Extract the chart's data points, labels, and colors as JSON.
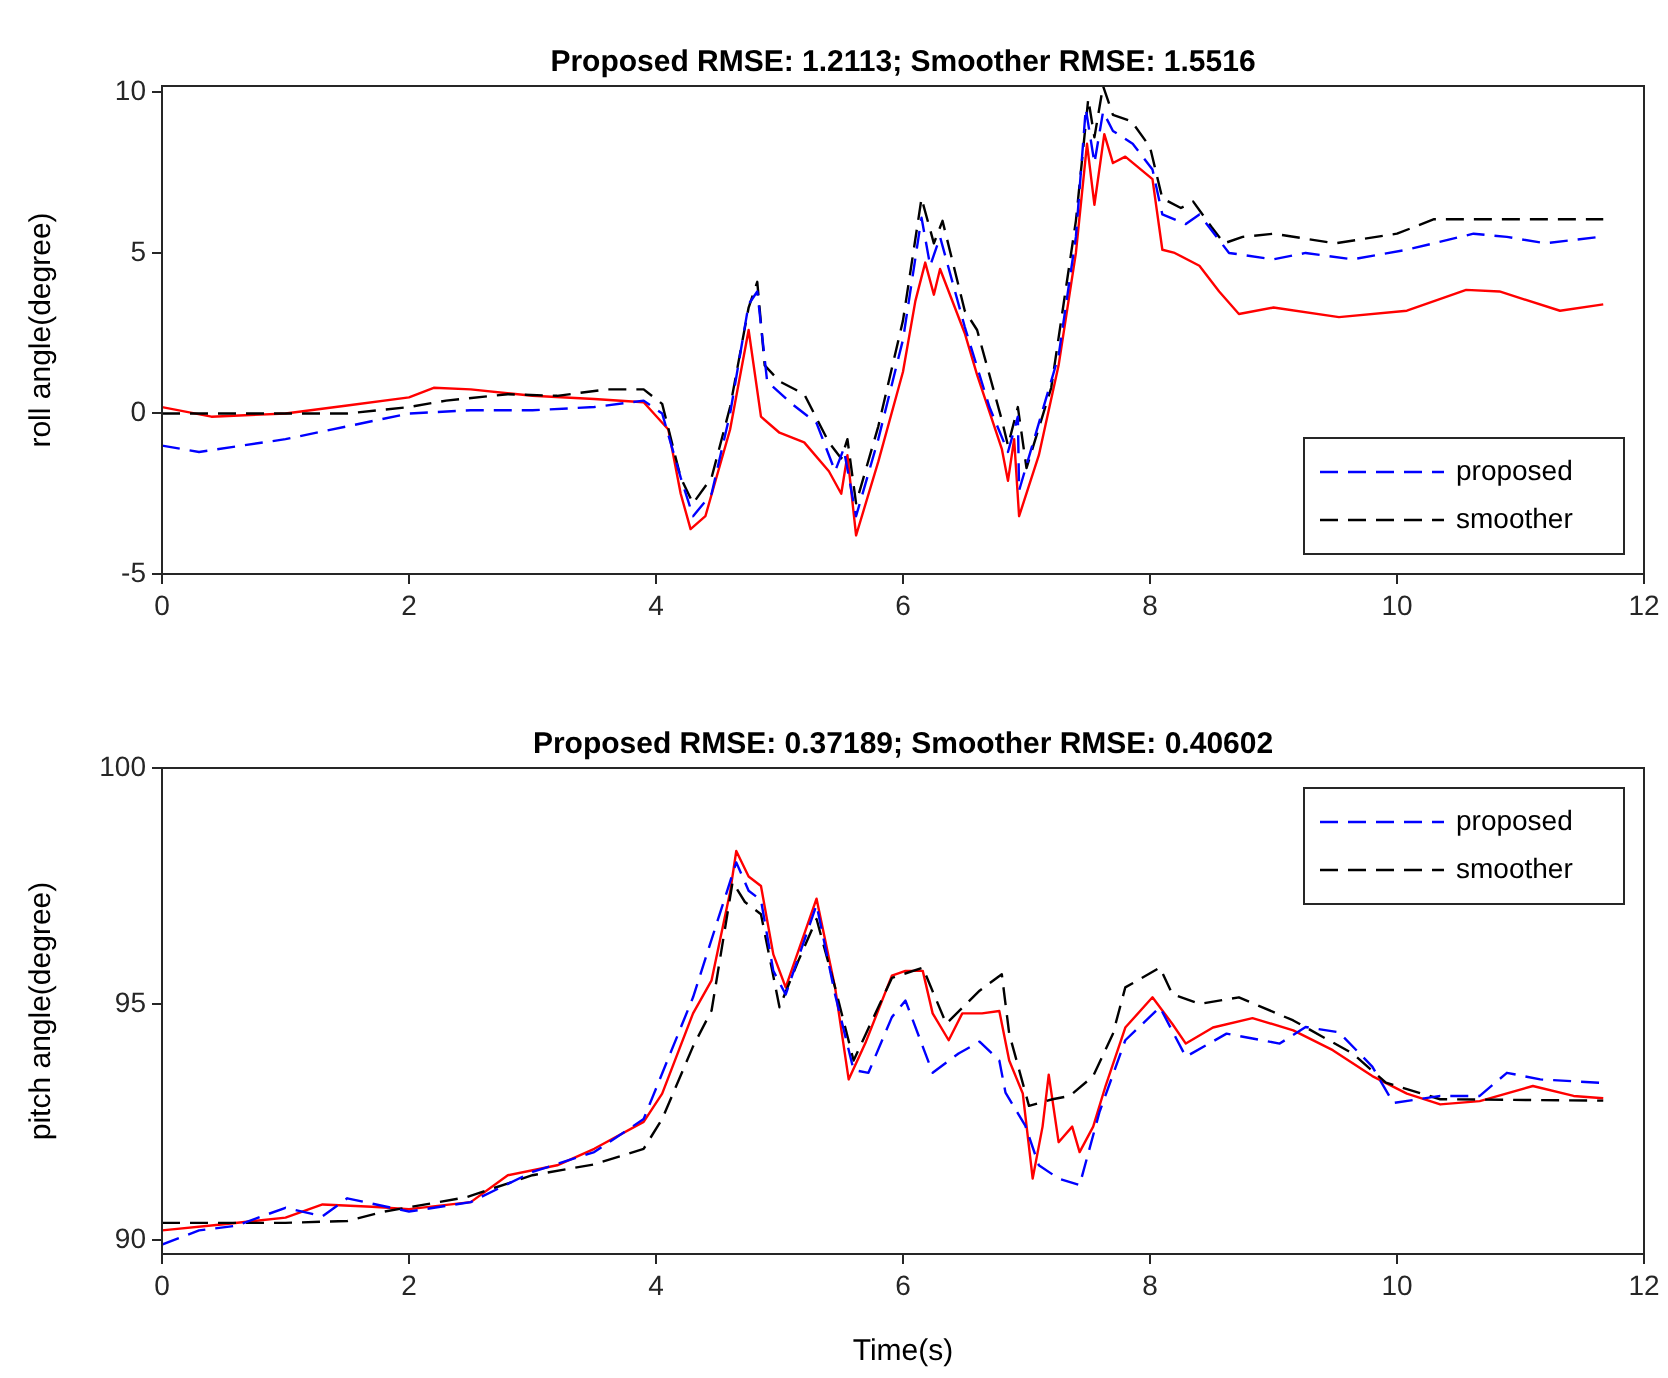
{
  "chart_data": [
    {
      "type": "line",
      "title": "Proposed RMSE: 1.2113; Smoother RMSE: 1.5516",
      "ylabel": "roll angle(degree)",
      "xlim": [
        0,
        12
      ],
      "xticks": [
        0,
        2,
        4,
        6,
        8,
        10,
        12
      ],
      "ylim": [
        -5,
        10.2
      ],
      "yticks": [
        -5,
        0,
        5,
        10
      ],
      "grid": false,
      "legend": "bottom right",
      "marker": "none",
      "series": [
        {
          "name": "proposed",
          "color": "#0000ff",
          "line_style": "dashed",
          "x": [
            0,
            0.3,
            1,
            1.5,
            2,
            2.5,
            3,
            3.5,
            3.9,
            4.05,
            4.2,
            4.3,
            4.45,
            4.6,
            4.75,
            4.82,
            4.9,
            5.1,
            5.3,
            5.45,
            5.52,
            5.62,
            5.8,
            6.0,
            6.15,
            6.22,
            6.3,
            6.5,
            6.7,
            6.85,
            6.93,
            6.94,
            7.26,
            7.4,
            7.48,
            7.55,
            7.62,
            7.7,
            7.86,
            8.02,
            8.1,
            8.29,
            8.4,
            8.64,
            9.0,
            9.26,
            9.64,
            10.08,
            10.62,
            10.89,
            11.2,
            11.64
          ],
          "values": [
            -1.0,
            -1.2,
            -0.8,
            -0.4,
            0.0,
            0.1,
            0.1,
            0.2,
            0.4,
            0.0,
            -2.0,
            -3.2,
            -2.5,
            0.0,
            3.4,
            3.8,
            1.0,
            0.3,
            -0.3,
            -1.8,
            -1.1,
            -3.2,
            -0.8,
            2.3,
            6.1,
            4.6,
            5.5,
            2.7,
            0.2,
            -1.2,
            -0.1,
            -2.4,
            1.8,
            5.5,
            9.5,
            7.8,
            9.4,
            8.8,
            8.4,
            7.6,
            6.2,
            5.9,
            6.2,
            5.0,
            4.8,
            5.0,
            4.8,
            5.1,
            5.6,
            5.5,
            5.3,
            5.5
          ]
        },
        {
          "name": "smoother",
          "color": "#000000",
          "line_style": "dashed",
          "x": [
            0,
            1,
            1.5,
            2,
            2.3,
            2.8,
            3.2,
            3.6,
            3.9,
            4.05,
            4.2,
            4.3,
            4.45,
            4.6,
            4.75,
            4.82,
            4.88,
            5.0,
            5.2,
            5.4,
            5.5,
            5.55,
            5.62,
            5.8,
            6.0,
            6.15,
            6.25,
            6.32,
            6.5,
            6.6,
            6.8,
            6.85,
            6.93,
            7.0,
            7.2,
            7.4,
            7.5,
            7.55,
            7.62,
            7.7,
            7.85,
            8.0,
            8.1,
            8.25,
            8.35,
            8.5,
            8.6,
            8.75,
            9.0,
            9.5,
            10.0,
            10.3,
            11.67
          ],
          "values": [
            0.0,
            0.0,
            0.0,
            0.2,
            0.4,
            0.6,
            0.55,
            0.75,
            0.75,
            0.3,
            -2.0,
            -2.8,
            -2.0,
            0.2,
            3.3,
            4.1,
            1.5,
            1.0,
            0.6,
            -0.9,
            -1.4,
            -0.8,
            -2.8,
            -0.4,
            2.9,
            6.7,
            5.3,
            6.0,
            3.2,
            2.6,
            -0.2,
            -1.0,
            0.2,
            -1.7,
            0.8,
            6.0,
            9.8,
            8.6,
            10.2,
            9.3,
            9.1,
            8.3,
            6.7,
            6.4,
            6.6,
            5.8,
            5.3,
            5.5,
            5.6,
            5.3,
            5.6,
            6.05,
            6.05
          ]
        },
        {
          "color": "#ff0000",
          "line_style": "solid",
          "x": [
            0,
            0.4,
            1,
            1.5,
            2,
            2.2,
            2.5,
            3,
            3.5,
            3.9,
            4.1,
            4.2,
            4.28,
            4.4,
            4.6,
            4.75,
            4.85,
            5.0,
            5.2,
            5.4,
            5.5,
            5.55,
            5.62,
            5.8,
            6.0,
            6.1,
            6.18,
            6.25,
            6.3,
            6.5,
            6.6,
            6.8,
            6.85,
            6.9,
            6.94,
            7.1,
            7.26,
            7.4,
            7.49,
            7.55,
            7.63,
            7.7,
            7.8,
            8.02,
            8.1,
            8.2,
            8.4,
            8.56,
            8.72,
            9.0,
            9.53,
            10.08,
            10.56,
            10.83,
            11.32,
            11.67
          ],
          "values": [
            0.2,
            -0.1,
            0.0,
            0.25,
            0.5,
            0.8,
            0.75,
            0.55,
            0.45,
            0.35,
            -0.5,
            -2.5,
            -3.6,
            -3.2,
            -0.5,
            2.6,
            -0.1,
            -0.6,
            -0.9,
            -1.8,
            -2.5,
            -1.3,
            -3.8,
            -1.5,
            1.3,
            3.5,
            4.7,
            3.7,
            4.5,
            2.5,
            1.2,
            -1.1,
            -2.1,
            -0.8,
            -3.2,
            -1.3,
            1.5,
            5.0,
            8.4,
            6.5,
            8.7,
            7.8,
            8.0,
            7.3,
            5.1,
            5.0,
            4.6,
            3.8,
            3.1,
            3.3,
            3.0,
            3.2,
            3.85,
            3.8,
            3.2,
            3.4
          ]
        }
      ]
    },
    {
      "type": "line",
      "title": "Proposed RMSE: 0.37189; Smoother RMSE: 0.40602",
      "xlabel": "Time(s)",
      "ylabel": "pitch angle(degree)",
      "xlim": [
        0,
        12
      ],
      "xticks": [
        0,
        2,
        4,
        6,
        8,
        10,
        12
      ],
      "ylim": [
        89.7,
        100
      ],
      "yticks": [
        90,
        95,
        100
      ],
      "grid": false,
      "legend": "top right",
      "marker": "none",
      "series": [
        {
          "name": "proposed",
          "color": "#0000ff",
          "line_style": "dashed",
          "x": [
            0,
            0.3,
            0.6,
            1.0,
            1.3,
            1.5,
            2.0,
            2.5,
            3.0,
            3.5,
            3.9,
            4.3,
            4.65,
            4.75,
            4.85,
            4.95,
            5.05,
            5.3,
            5.45,
            5.6,
            5.72,
            5.91,
            6.02,
            6.24,
            6.45,
            6.62,
            6.78,
            6.83,
            6.99,
            7.1,
            7.26,
            7.43,
            7.59,
            7.8,
            8.08,
            8.29,
            8.62,
            9.05,
            9.26,
            9.53,
            9.8,
            9.97,
            10.35,
            10.67,
            10.89,
            11.16,
            11.64
          ],
          "values": [
            89.9,
            90.2,
            90.3,
            90.68,
            90.5,
            90.88,
            90.6,
            90.8,
            91.44,
            91.86,
            92.56,
            95.14,
            98.0,
            97.4,
            97.2,
            95.7,
            95.2,
            97.1,
            95.2,
            93.6,
            93.54,
            94.72,
            95.07,
            93.54,
            93.95,
            94.2,
            93.8,
            93.12,
            92.42,
            91.58,
            91.3,
            91.16,
            92.7,
            94.23,
            94.93,
            93.88,
            94.37,
            94.16,
            94.51,
            94.4,
            93.67,
            92.9,
            93.05,
            93.05,
            93.54,
            93.4,
            93.33
          ]
        },
        {
          "name": "smoother",
          "color": "#000000",
          "line_style": "dashed",
          "x": [
            0,
            1,
            1.5,
            1.8,
            2.46,
            3.0,
            3.5,
            3.9,
            4.05,
            4.3,
            4.45,
            4.62,
            4.72,
            4.85,
            5.0,
            5.15,
            5.3,
            5.45,
            5.6,
            5.7,
            5.91,
            6.16,
            6.35,
            6.62,
            6.8,
            6.86,
            7.02,
            7.21,
            7.35,
            7.54,
            7.7,
            7.8,
            8.08,
            8.18,
            8.4,
            8.72,
            9.16,
            9.64,
            9.91,
            10.35,
            11.67
          ],
          "values": [
            90.36,
            90.36,
            90.4,
            90.6,
            90.9,
            91.37,
            91.6,
            91.93,
            92.56,
            94.1,
            94.86,
            97.58,
            97.16,
            96.9,
            94.93,
            95.9,
            96.8,
            95.35,
            93.8,
            94.37,
            95.55,
            95.77,
            94.58,
            95.28,
            95.63,
            94.37,
            92.84,
            92.98,
            93.05,
            93.47,
            94.37,
            95.35,
            95.77,
            95.21,
            95.0,
            95.14,
            94.65,
            93.95,
            93.33,
            92.98,
            92.95
          ]
        },
        {
          "color": "#ff0000",
          "line_style": "solid",
          "x": [
            0,
            0.5,
            1,
            1.3,
            1.7,
            2.0,
            2.5,
            2.8,
            3.2,
            3.5,
            3.9,
            4.05,
            4.3,
            4.45,
            4.6,
            4.65,
            4.75,
            4.85,
            4.95,
            5.05,
            5.3,
            5.45,
            5.56,
            5.7,
            5.91,
            6.02,
            6.16,
            6.24,
            6.37,
            6.48,
            6.64,
            6.78,
            6.86,
            6.97,
            7.05,
            7.13,
            7.18,
            7.26,
            7.37,
            7.43,
            7.54,
            7.64,
            7.8,
            8.02,
            8.18,
            8.29,
            8.51,
            8.83,
            9.16,
            9.48,
            9.8,
            10.08,
            10.35,
            10.67,
            11.1,
            11.43,
            11.67
          ],
          "values": [
            90.2,
            90.33,
            90.47,
            90.75,
            90.7,
            90.65,
            90.8,
            91.37,
            91.58,
            91.93,
            92.5,
            93.1,
            94.8,
            95.5,
            97.37,
            98.24,
            97.7,
            97.5,
            96.05,
            95.35,
            97.23,
            95.35,
            93.4,
            94.2,
            95.6,
            95.7,
            95.7,
            94.8,
            94.23,
            94.8,
            94.8,
            94.85,
            93.8,
            93.1,
            91.3,
            92.4,
            93.5,
            92.07,
            92.4,
            91.86,
            92.4,
            93.26,
            94.5,
            95.14,
            94.58,
            94.16,
            94.5,
            94.7,
            94.44,
            94.02,
            93.47,
            93.1,
            92.87,
            92.94,
            93.26,
            93.05,
            93.0
          ]
        }
      ]
    }
  ]
}
